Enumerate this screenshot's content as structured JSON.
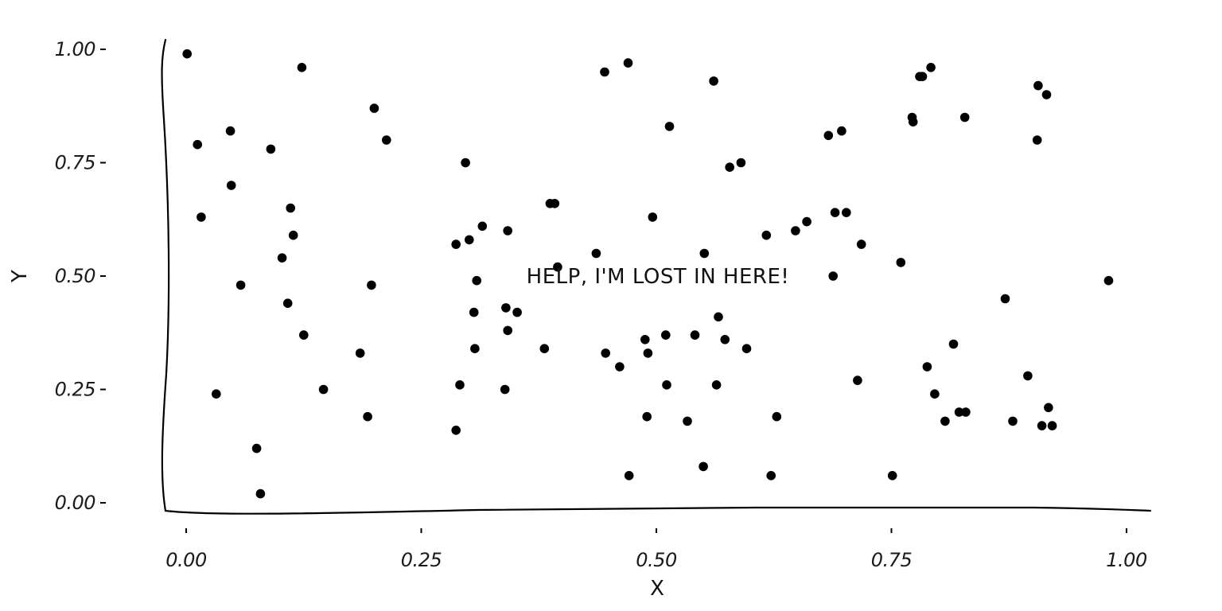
{
  "chart_data": {
    "type": "scatter",
    "xlabel": "X",
    "ylabel": "Y",
    "xlim": [
      -0.045,
      1.03
    ],
    "ylim": [
      -0.025,
      1.025
    ],
    "x_ticks": [
      {
        "value": 0.0,
        "label": "0.00"
      },
      {
        "value": 0.25,
        "label": "0.25"
      },
      {
        "value": 0.5,
        "label": "0.50"
      },
      {
        "value": 0.75,
        "label": "0.75"
      },
      {
        "value": 1.0,
        "label": "1.00"
      }
    ],
    "y_ticks": [
      {
        "value": 0.0,
        "label": "0.00"
      },
      {
        "value": 0.25,
        "label": "0.25"
      },
      {
        "value": 0.5,
        "label": "0.50"
      },
      {
        "value": 0.75,
        "label": "0.75"
      },
      {
        "value": 1.0,
        "label": "1.00"
      }
    ],
    "grid": false,
    "legend": "none",
    "point_color": "#000000",
    "annotation": {
      "text": "HELP, I'M LOST IN HERE!",
      "x": 0.5,
      "y": 0.5
    },
    "points": [
      [
        0.001,
        0.99
      ],
      [
        0.012,
        0.79
      ],
      [
        0.016,
        0.63
      ],
      [
        0.032,
        0.24
      ],
      [
        0.047,
        0.82
      ],
      [
        0.048,
        0.7
      ],
      [
        0.058,
        0.48
      ],
      [
        0.075,
        0.12
      ],
      [
        0.079,
        0.02
      ],
      [
        0.09,
        0.78
      ],
      [
        0.102,
        0.54
      ],
      [
        0.108,
        0.44
      ],
      [
        0.111,
        0.65
      ],
      [
        0.114,
        0.59
      ],
      [
        0.123,
        0.96
      ],
      [
        0.125,
        0.37
      ],
      [
        0.146,
        0.25
      ],
      [
        0.185,
        0.33
      ],
      [
        0.193,
        0.19
      ],
      [
        0.197,
        0.48
      ],
      [
        0.2,
        0.87
      ],
      [
        0.213,
        0.8
      ],
      [
        0.287,
        0.57
      ],
      [
        0.287,
        0.16
      ],
      [
        0.291,
        0.26
      ],
      [
        0.297,
        0.75
      ],
      [
        0.301,
        0.58
      ],
      [
        0.306,
        0.42
      ],
      [
        0.307,
        0.34
      ],
      [
        0.309,
        0.49
      ],
      [
        0.315,
        0.61
      ],
      [
        0.339,
        0.25
      ],
      [
        0.34,
        0.43
      ],
      [
        0.342,
        0.38
      ],
      [
        0.342,
        0.6
      ],
      [
        0.352,
        0.42
      ],
      [
        0.381,
        0.34
      ],
      [
        0.387,
        0.66
      ],
      [
        0.392,
        0.66
      ],
      [
        0.395,
        0.52
      ],
      [
        0.436,
        0.55
      ],
      [
        0.445,
        0.95
      ],
      [
        0.446,
        0.33
      ],
      [
        0.461,
        0.3
      ],
      [
        0.47,
        0.97
      ],
      [
        0.471,
        0.06
      ],
      [
        0.488,
        0.36
      ],
      [
        0.49,
        0.19
      ],
      [
        0.491,
        0.33
      ],
      [
        0.496,
        0.63
      ],
      [
        0.51,
        0.37
      ],
      [
        0.511,
        0.26
      ],
      [
        0.514,
        0.83
      ],
      [
        0.533,
        0.18
      ],
      [
        0.541,
        0.37
      ],
      [
        0.55,
        0.08
      ],
      [
        0.551,
        0.55
      ],
      [
        0.561,
        0.93
      ],
      [
        0.564,
        0.26
      ],
      [
        0.566,
        0.41
      ],
      [
        0.573,
        0.36
      ],
      [
        0.578,
        0.74
      ],
      [
        0.59,
        0.75
      ],
      [
        0.596,
        0.34
      ],
      [
        0.617,
        0.59
      ],
      [
        0.622,
        0.06
      ],
      [
        0.628,
        0.19
      ],
      [
        0.648,
        0.6
      ],
      [
        0.66,
        0.62
      ],
      [
        0.683,
        0.81
      ],
      [
        0.688,
        0.5
      ],
      [
        0.69,
        0.64
      ],
      [
        0.697,
        0.82
      ],
      [
        0.702,
        0.64
      ],
      [
        0.714,
        0.27
      ],
      [
        0.718,
        0.57
      ],
      [
        0.751,
        0.06
      ],
      [
        0.76,
        0.53
      ],
      [
        0.772,
        0.85
      ],
      [
        0.773,
        0.84
      ],
      [
        0.78,
        0.94
      ],
      [
        0.783,
        0.94
      ],
      [
        0.788,
        0.3
      ],
      [
        0.792,
        0.96
      ],
      [
        0.796,
        0.24
      ],
      [
        0.807,
        0.18
      ],
      [
        0.816,
        0.35
      ],
      [
        0.822,
        0.2
      ],
      [
        0.828,
        0.85
      ],
      [
        0.829,
        0.2
      ],
      [
        0.871,
        0.45
      ],
      [
        0.879,
        0.18
      ],
      [
        0.895,
        0.28
      ],
      [
        0.905,
        0.8
      ],
      [
        0.906,
        0.92
      ],
      [
        0.91,
        0.17
      ],
      [
        0.915,
        0.9
      ],
      [
        0.917,
        0.21
      ],
      [
        0.921,
        0.17
      ],
      [
        0.981,
        0.49
      ]
    ]
  }
}
